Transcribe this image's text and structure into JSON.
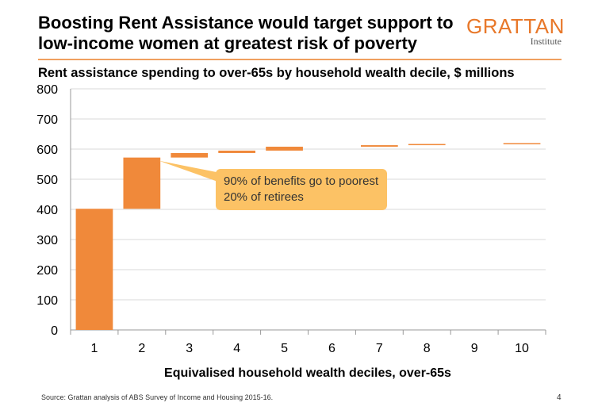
{
  "title": "Boosting Rent Assistance would target support to low-income women at greatest risk of poverty",
  "logo": {
    "name": "GRATTAN",
    "sub": "Institute"
  },
  "source": "Source: Grattan analysis of ABS Survey of Income and Housing 2015-16.",
  "page_number": "4",
  "colors": {
    "bar": "#f0893a",
    "accent": "#e8782a",
    "callout": "#fcc265",
    "grid": "#d9d9d9"
  },
  "chart_data": {
    "type": "bar",
    "subtype": "waterfall",
    "title": "Rent assistance spending to over-65s by household wealth decile, $ millions",
    "xlabel": "Equivalised household wealth deciles, over-65s",
    "ylabel": "",
    "ylim": [
      0,
      800
    ],
    "yticks": [
      "0",
      "100",
      "200",
      "300",
      "400",
      "500",
      "600",
      "700",
      "800"
    ],
    "yticks_values": [
      0,
      100,
      200,
      300,
      400,
      500,
      600,
      700,
      800
    ],
    "categories": [
      "1",
      "2",
      "3",
      "4",
      "5",
      "6",
      "7",
      "8",
      "9",
      "10"
    ],
    "values": [
      402,
      170,
      15,
      8,
      13,
      0,
      5,
      4,
      0,
      3
    ],
    "cumulative": [
      402,
      572,
      587,
      595,
      608,
      608,
      613,
      617,
      617,
      620
    ],
    "grid": true,
    "annotation": "90% of benefits go to poorest 20% of retirees"
  }
}
